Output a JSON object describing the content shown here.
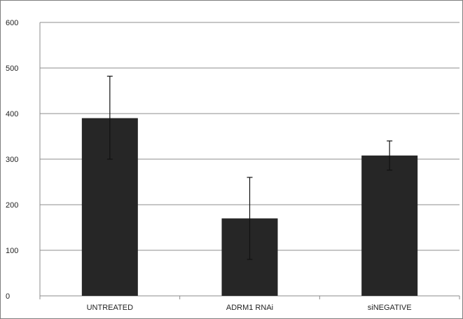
{
  "chart_data": {
    "type": "bar",
    "title": "",
    "xlabel": "",
    "ylabel": "",
    "categories": [
      "UNTREATED",
      "ADRM1 RNAi",
      "siNEGATIVE"
    ],
    "values": [
      390,
      170,
      308
    ],
    "error_bars": [
      {
        "low": 300,
        "high": 482
      },
      {
        "low": 80,
        "high": 260
      },
      {
        "low": 276,
        "high": 340
      }
    ],
    "ylim": [
      0,
      600
    ],
    "yticks": [
      "0",
      "100",
      "200",
      "300",
      "400",
      "500",
      "600"
    ],
    "grid": true,
    "legend": "none",
    "colors": {
      "bar": "#262626",
      "gridline": "#8c8c8c",
      "axis": "#8c8c8c",
      "errorbar": "#111111",
      "text": "#222222"
    }
  }
}
